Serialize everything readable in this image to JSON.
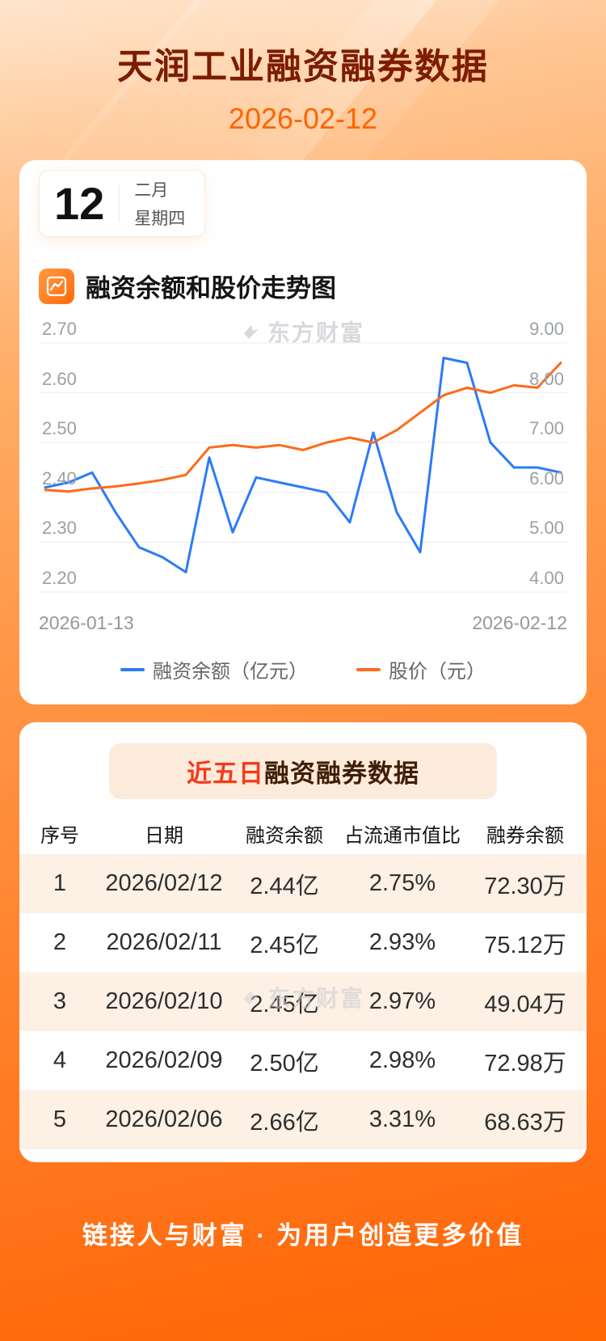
{
  "page": {
    "title": "天润工业融资融券数据",
    "date": "2026-02-12"
  },
  "calendar": {
    "day": "12",
    "month": "二月",
    "weekday": "星期四"
  },
  "chart_section": {
    "title": "融资余额和股价走势图"
  },
  "watermark": "东方财富",
  "chart_data": {
    "type": "line",
    "title": "融资余额和股价走势图",
    "x_start_label": "2026-01-13",
    "x_end_label": "2026-02-12",
    "grid": true,
    "legend_position": "bottom",
    "left_axis": {
      "label": "融资余额（亿元）",
      "min": 2.2,
      "max": 2.7,
      "ticks": [
        "2.70",
        "2.60",
        "2.50",
        "2.40",
        "2.30",
        "2.20"
      ]
    },
    "right_axis": {
      "label": "股价（元）",
      "min": 4.0,
      "max": 9.0,
      "ticks": [
        "9.00",
        "8.00",
        "7.00",
        "6.00",
        "5.00",
        "4.00"
      ]
    },
    "series": [
      {
        "name": "融资余额（亿元）",
        "axis": "left",
        "color": "#2b7bf6",
        "values": [
          2.41,
          2.42,
          2.44,
          2.36,
          2.29,
          2.27,
          2.24,
          2.47,
          2.32,
          2.43,
          2.42,
          2.41,
          2.4,
          2.34,
          2.52,
          2.36,
          2.28,
          2.67,
          2.66,
          2.5,
          2.45,
          2.45,
          2.44
        ]
      },
      {
        "name": "股价（元）",
        "axis": "right",
        "color": "#ff6a1a",
        "values": [
          6.05,
          6.02,
          6.08,
          6.12,
          6.18,
          6.25,
          6.35,
          6.9,
          6.95,
          6.9,
          6.95,
          6.85,
          7.0,
          7.1,
          7.0,
          7.25,
          7.6,
          7.95,
          8.1,
          8.0,
          8.15,
          8.1,
          8.6
        ]
      }
    ]
  },
  "table_section": {
    "title_highlight": "近五日",
    "title_rest": "融资融券数据",
    "columns": [
      "序号",
      "日期",
      "融资余额",
      "占流通市值比",
      "融券余额"
    ],
    "rows": [
      [
        "1",
        "2026/02/12",
        "2.44亿",
        "2.75%",
        "72.30万"
      ],
      [
        "2",
        "2026/02/11",
        "2.45亿",
        "2.93%",
        "75.12万"
      ],
      [
        "3",
        "2026/02/10",
        "2.45亿",
        "2.97%",
        "49.04万"
      ],
      [
        "4",
        "2026/02/09",
        "2.50亿",
        "2.98%",
        "72.98万"
      ],
      [
        "5",
        "2026/02/06",
        "2.66亿",
        "3.31%",
        "68.63万"
      ]
    ]
  },
  "footer": {
    "slogan": "链接人与财富 · 为用户创造更多价值"
  },
  "colors": {
    "accent": "#ff6a00",
    "title": "#7d1c00",
    "line_blue": "#2b7bf6",
    "line_orange": "#ff6a1a",
    "stripe": "#fdf0e4",
    "pill_bg": "#fceadb",
    "pill_highlight": "#f43a1a"
  }
}
